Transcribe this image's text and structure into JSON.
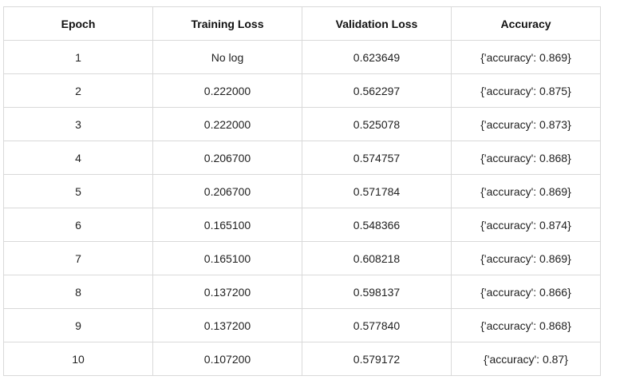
{
  "table": {
    "headers": [
      "Epoch",
      "Training Loss",
      "Validation Loss",
      "Accuracy"
    ],
    "rows": [
      [
        "1",
        "No log",
        "0.623649",
        "{'accuracy': 0.869}"
      ],
      [
        "2",
        "0.222000",
        "0.562297",
        "{'accuracy': 0.875}"
      ],
      [
        "3",
        "0.222000",
        "0.525078",
        "{'accuracy': 0.873}"
      ],
      [
        "4",
        "0.206700",
        "0.574757",
        "{'accuracy': 0.868}"
      ],
      [
        "5",
        "0.206700",
        "0.571784",
        "{'accuracy': 0.869}"
      ],
      [
        "6",
        "0.165100",
        "0.548366",
        "{'accuracy': 0.874}"
      ],
      [
        "7",
        "0.165100",
        "0.608218",
        "{'accuracy': 0.869}"
      ],
      [
        "8",
        "0.137200",
        "0.598137",
        "{'accuracy': 0.866}"
      ],
      [
        "9",
        "0.137200",
        "0.577840",
        "{'accuracy': 0.868}"
      ],
      [
        "10",
        "0.107200",
        "0.579172",
        "{'accuracy': 0.87}"
      ]
    ]
  }
}
